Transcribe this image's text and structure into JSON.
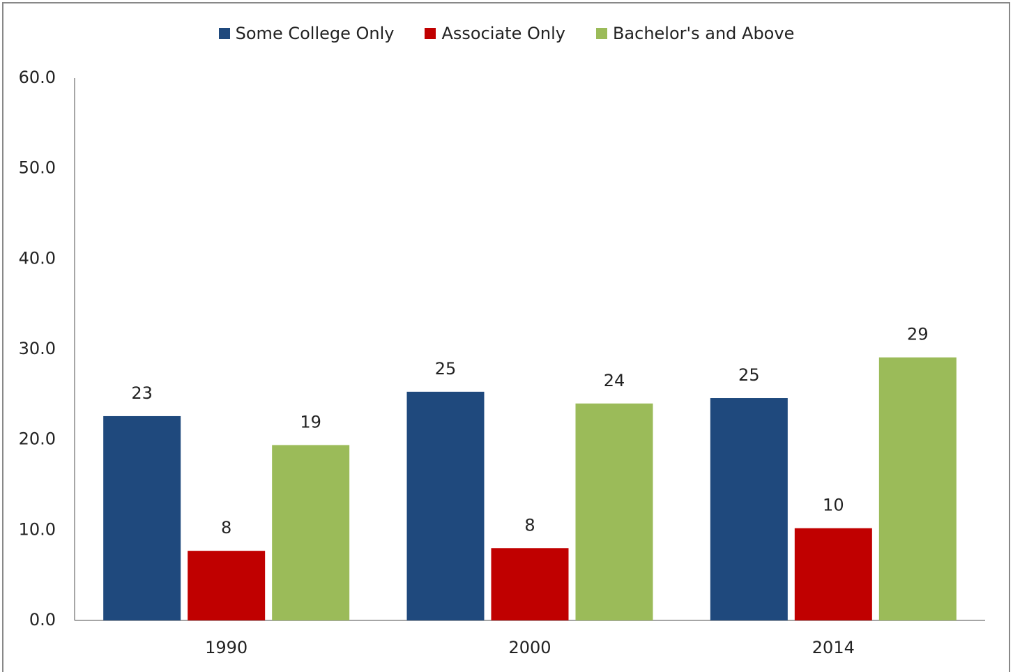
{
  "chart_data": {
    "type": "bar",
    "categories": [
      "1990",
      "2000",
      "2014"
    ],
    "series": [
      {
        "name": "Some College Only",
        "color": "#1f497d",
        "values": [
          22.6,
          25.3,
          24.6
        ],
        "value_labels": [
          "23",
          "25",
          "25"
        ]
      },
      {
        "name": "Associate Only",
        "color": "#c00000",
        "values": [
          7.7,
          8.0,
          10.2
        ],
        "value_labels": [
          "8",
          "8",
          "10"
        ]
      },
      {
        "name": "Bachelor's and Above",
        "color": "#9bbb59",
        "values": [
          19.4,
          24.0,
          29.1
        ],
        "value_labels": [
          "19",
          "24",
          "29"
        ]
      }
    ],
    "ylim": [
      0,
      60
    ],
    "yticks": [
      {
        "value": 0,
        "label": "0.0"
      },
      {
        "value": 10,
        "label": "10.0"
      },
      {
        "value": 20,
        "label": "20.0"
      },
      {
        "value": 30,
        "label": "30.0"
      },
      {
        "value": 40,
        "label": "40.0"
      },
      {
        "value": 50,
        "label": "50.0"
      },
      {
        "value": 60,
        "label": "60.0"
      }
    ],
    "grid": false,
    "legend": "top"
  }
}
